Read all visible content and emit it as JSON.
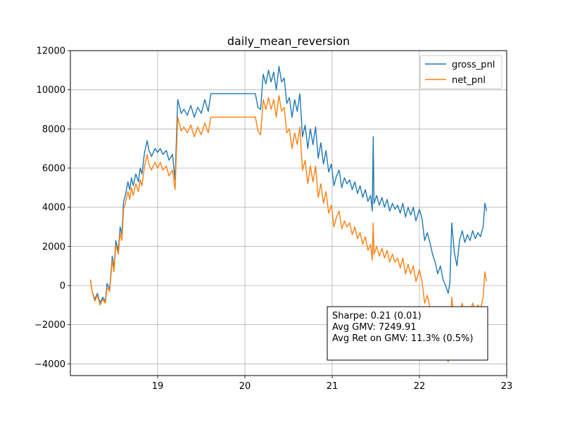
{
  "chart_data": {
    "type": "line",
    "title": "daily_mean_reversion",
    "xlabel": "",
    "ylabel": "",
    "xlim": [
      18.0,
      23.0
    ],
    "ylim": [
      -4600,
      12000
    ],
    "x_ticks": [
      19,
      20,
      21,
      22,
      23
    ],
    "y_ticks": [
      -4000,
      -2000,
      0,
      2000,
      4000,
      6000,
      8000,
      10000,
      12000
    ],
    "grid": true,
    "legend_position": "upper right",
    "series": [
      {
        "name": "gross_pnl",
        "color": "#1f77b4",
        "points": [
          [
            18.23,
            300
          ],
          [
            18.25,
            -300
          ],
          [
            18.28,
            -700
          ],
          [
            18.31,
            -400
          ],
          [
            18.34,
            -900
          ],
          [
            18.37,
            -600
          ],
          [
            18.4,
            -800
          ],
          [
            18.42,
            100
          ],
          [
            18.45,
            -200
          ],
          [
            18.48,
            1500
          ],
          [
            18.5,
            900
          ],
          [
            18.52,
            2300
          ],
          [
            18.55,
            1800
          ],
          [
            18.57,
            3000
          ],
          [
            18.59,
            2600
          ],
          [
            18.61,
            4300
          ],
          [
            18.63,
            4600
          ],
          [
            18.66,
            5300
          ],
          [
            18.68,
            4900
          ],
          [
            18.7,
            5500
          ],
          [
            18.72,
            5100
          ],
          [
            18.75,
            5700
          ],
          [
            18.78,
            5300
          ],
          [
            18.8,
            6000
          ],
          [
            18.82,
            5700
          ],
          [
            18.85,
            6800
          ],
          [
            18.88,
            7400
          ],
          [
            18.9,
            6900
          ],
          [
            18.93,
            6600
          ],
          [
            18.97,
            7000
          ],
          [
            19.0,
            6800
          ],
          [
            19.03,
            7000
          ],
          [
            19.06,
            6700
          ],
          [
            19.1,
            6900
          ],
          [
            19.13,
            6400
          ],
          [
            19.17,
            6700
          ],
          [
            19.2,
            5400
          ],
          [
            19.23,
            9500
          ],
          [
            19.27,
            8800
          ],
          [
            19.3,
            9000
          ],
          [
            19.34,
            8700
          ],
          [
            19.38,
            9200
          ],
          [
            19.42,
            8600
          ],
          [
            19.46,
            9100
          ],
          [
            19.5,
            8800
          ],
          [
            19.54,
            9500
          ],
          [
            19.58,
            8900
          ],
          [
            19.61,
            9800
          ],
          [
            20.12,
            9800
          ],
          [
            20.15,
            9100
          ],
          [
            20.18,
            9000
          ],
          [
            20.21,
            10800
          ],
          [
            20.24,
            10300
          ],
          [
            20.27,
            11000
          ],
          [
            20.3,
            10400
          ],
          [
            20.33,
            10900
          ],
          [
            20.36,
            10000
          ],
          [
            20.39,
            11200
          ],
          [
            20.42,
            10400
          ],
          [
            20.45,
            10600
          ],
          [
            20.48,
            9300
          ],
          [
            20.51,
            9600
          ],
          [
            20.54,
            8600
          ],
          [
            20.57,
            9500
          ],
          [
            20.6,
            8900
          ],
          [
            20.63,
            9800
          ],
          [
            20.66,
            7600
          ],
          [
            20.69,
            8200
          ],
          [
            20.72,
            7000
          ],
          [
            20.75,
            8000
          ],
          [
            20.78,
            7200
          ],
          [
            20.81,
            8100
          ],
          [
            20.84,
            6500
          ],
          [
            20.87,
            7300
          ],
          [
            20.9,
            6200
          ],
          [
            20.93,
            6900
          ],
          [
            20.96,
            5800
          ],
          [
            20.99,
            6200
          ],
          [
            21.02,
            5100
          ],
          [
            21.05,
            5600
          ],
          [
            21.08,
            5900
          ],
          [
            21.11,
            5000
          ],
          [
            21.14,
            5500
          ],
          [
            21.17,
            5200
          ],
          [
            21.2,
            5400
          ],
          [
            21.23,
            4900
          ],
          [
            21.26,
            5300
          ],
          [
            21.29,
            4700
          ],
          [
            21.32,
            5100
          ],
          [
            21.35,
            4500
          ],
          [
            21.38,
            4900
          ],
          [
            21.41,
            4300
          ],
          [
            21.44,
            4600
          ],
          [
            21.46,
            3800
          ],
          [
            21.47,
            7600
          ],
          [
            21.48,
            4200
          ],
          [
            21.51,
            4600
          ],
          [
            21.54,
            4100
          ],
          [
            21.57,
            4500
          ],
          [
            21.6,
            4000
          ],
          [
            21.63,
            4400
          ],
          [
            21.66,
            3800
          ],
          [
            21.69,
            4200
          ],
          [
            21.72,
            3900
          ],
          [
            21.75,
            4100
          ],
          [
            21.78,
            3700
          ],
          [
            21.81,
            4200
          ],
          [
            21.84,
            3500
          ],
          [
            21.87,
            4000
          ],
          [
            21.9,
            3600
          ],
          [
            21.93,
            4000
          ],
          [
            21.96,
            3300
          ],
          [
            22.0,
            3900
          ],
          [
            22.03,
            3400
          ],
          [
            22.06,
            2300
          ],
          [
            22.09,
            2700
          ],
          [
            22.12,
            2200
          ],
          [
            22.15,
            1600
          ],
          [
            22.18,
            1200
          ],
          [
            22.21,
            600
          ],
          [
            22.24,
            1000
          ],
          [
            22.27,
            300
          ],
          [
            22.3,
            0
          ],
          [
            22.33,
            -400
          ],
          [
            22.35,
            200
          ],
          [
            22.37,
            3200
          ],
          [
            22.4,
            1700
          ],
          [
            22.43,
            1000
          ],
          [
            22.46,
            2300
          ],
          [
            22.49,
            2800
          ],
          [
            22.52,
            2200
          ],
          [
            22.55,
            2600
          ],
          [
            22.58,
            2300
          ],
          [
            22.61,
            2800
          ],
          [
            22.64,
            2400
          ],
          [
            22.67,
            2700
          ],
          [
            22.7,
            2500
          ],
          [
            22.73,
            3000
          ],
          [
            22.75,
            4200
          ],
          [
            22.77,
            3800
          ]
        ]
      },
      {
        "name": "net_pnl",
        "color": "#ff7f0e",
        "points": [
          [
            18.23,
            300
          ],
          [
            18.25,
            -300
          ],
          [
            18.28,
            -800
          ],
          [
            18.31,
            -500
          ],
          [
            18.34,
            -1000
          ],
          [
            18.37,
            -700
          ],
          [
            18.4,
            -900
          ],
          [
            18.42,
            -100
          ],
          [
            18.45,
            -300
          ],
          [
            18.48,
            1300
          ],
          [
            18.5,
            700
          ],
          [
            18.52,
            2100
          ],
          [
            18.55,
            1600
          ],
          [
            18.57,
            2700
          ],
          [
            18.59,
            2300
          ],
          [
            18.61,
            3900
          ],
          [
            18.63,
            4200
          ],
          [
            18.66,
            4800
          ],
          [
            18.68,
            4400
          ],
          [
            18.7,
            5000
          ],
          [
            18.72,
            4600
          ],
          [
            18.75,
            5200
          ],
          [
            18.78,
            4800
          ],
          [
            18.8,
            5400
          ],
          [
            18.82,
            5100
          ],
          [
            18.85,
            6100
          ],
          [
            18.88,
            6700
          ],
          [
            18.9,
            6200
          ],
          [
            18.93,
            5900
          ],
          [
            18.97,
            6300
          ],
          [
            19.0,
            6000
          ],
          [
            19.03,
            6300
          ],
          [
            19.06,
            5900
          ],
          [
            19.1,
            6100
          ],
          [
            19.13,
            5600
          ],
          [
            19.17,
            5900
          ],
          [
            19.2,
            4900
          ],
          [
            19.23,
            8600
          ],
          [
            19.27,
            7900
          ],
          [
            19.3,
            8100
          ],
          [
            19.34,
            7800
          ],
          [
            19.38,
            8200
          ],
          [
            19.42,
            7600
          ],
          [
            19.46,
            8100
          ],
          [
            19.5,
            7700
          ],
          [
            19.54,
            8300
          ],
          [
            19.58,
            7800
          ],
          [
            19.61,
            8600
          ],
          [
            20.12,
            8600
          ],
          [
            20.15,
            7900
          ],
          [
            20.18,
            7700
          ],
          [
            20.21,
            9500
          ],
          [
            20.24,
            9000
          ],
          [
            20.27,
            9600
          ],
          [
            20.3,
            9000
          ],
          [
            20.33,
            9500
          ],
          [
            20.36,
            8600
          ],
          [
            20.39,
            9700
          ],
          [
            20.42,
            8900
          ],
          [
            20.45,
            9100
          ],
          [
            20.48,
            7800
          ],
          [
            20.51,
            8000
          ],
          [
            20.54,
            7000
          ],
          [
            20.57,
            7800
          ],
          [
            20.6,
            7200
          ],
          [
            20.63,
            8100
          ],
          [
            20.66,
            5900
          ],
          [
            20.69,
            6400
          ],
          [
            20.72,
            5200
          ],
          [
            20.75,
            6100
          ],
          [
            20.78,
            5300
          ],
          [
            20.81,
            6100
          ],
          [
            20.84,
            4500
          ],
          [
            20.87,
            5200
          ],
          [
            20.9,
            4200
          ],
          [
            20.93,
            4800
          ],
          [
            20.96,
            3700
          ],
          [
            20.99,
            4100
          ],
          [
            21.02,
            3000
          ],
          [
            21.05,
            3500
          ],
          [
            21.08,
            3800
          ],
          [
            21.11,
            2900
          ],
          [
            21.14,
            3300
          ],
          [
            21.17,
            3000
          ],
          [
            21.2,
            3200
          ],
          [
            21.23,
            2600
          ],
          [
            21.26,
            3000
          ],
          [
            21.29,
            2400
          ],
          [
            21.32,
            2700
          ],
          [
            21.35,
            2100
          ],
          [
            21.38,
            2500
          ],
          [
            21.41,
            1800
          ],
          [
            21.44,
            2100
          ],
          [
            21.46,
            1300
          ],
          [
            21.47,
            3200
          ],
          [
            21.48,
            1600
          ],
          [
            21.51,
            2000
          ],
          [
            21.54,
            1500
          ],
          [
            21.57,
            1900
          ],
          [
            21.6,
            1400
          ],
          [
            21.63,
            1800
          ],
          [
            21.66,
            1200
          ],
          [
            21.69,
            1600
          ],
          [
            21.72,
            1200
          ],
          [
            21.75,
            1400
          ],
          [
            21.78,
            900
          ],
          [
            21.81,
            1400
          ],
          [
            21.84,
            600
          ],
          [
            21.87,
            1100
          ],
          [
            21.9,
            600
          ],
          [
            21.93,
            1000
          ],
          [
            21.96,
            200
          ],
          [
            22.0,
            800
          ],
          [
            22.03,
            200
          ],
          [
            22.06,
            -900
          ],
          [
            22.09,
            -500
          ],
          [
            22.12,
            -1100
          ],
          [
            22.15,
            -1700
          ],
          [
            22.18,
            -2100
          ],
          [
            22.21,
            -2800
          ],
          [
            22.24,
            -2400
          ],
          [
            22.27,
            -3200
          ],
          [
            22.3,
            -3500
          ],
          [
            22.33,
            -3900
          ],
          [
            22.35,
            -3200
          ],
          [
            22.37,
            -600
          ],
          [
            22.4,
            -1800
          ],
          [
            22.43,
            -2500
          ],
          [
            22.46,
            -1400
          ],
          [
            22.49,
            -900
          ],
          [
            22.52,
            -1500
          ],
          [
            22.55,
            -1100
          ],
          [
            22.58,
            -1400
          ],
          [
            22.61,
            -900
          ],
          [
            22.64,
            -1300
          ],
          [
            22.67,
            -1000
          ],
          [
            22.7,
            -1200
          ],
          [
            22.73,
            -600
          ],
          [
            22.75,
            700
          ],
          [
            22.77,
            200
          ]
        ]
      }
    ],
    "annotation": [
      "Sharpe: 0.21 (0.01)",
      "Avg GMV: 7249.91",
      "Avg Ret on GMV: 11.3% (0.5%)"
    ]
  }
}
